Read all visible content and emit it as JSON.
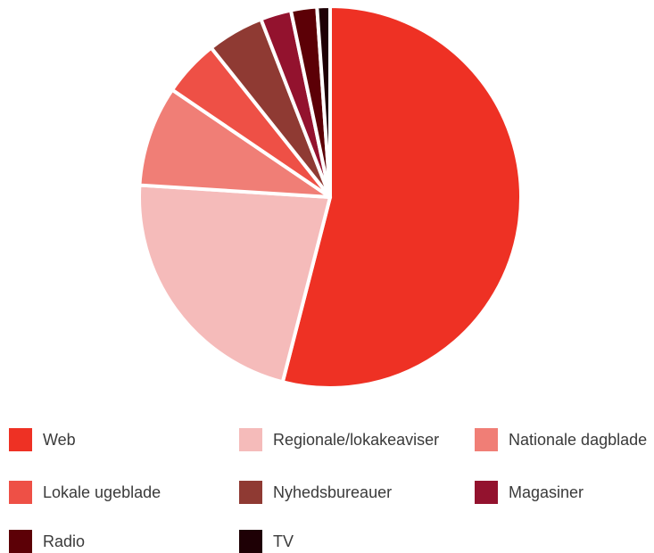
{
  "chart_data": {
    "type": "pie",
    "title": "",
    "start_angle_deg": 0,
    "direction": "clockwise",
    "legend_position": "bottom",
    "series": [
      {
        "name": "Web",
        "value": 54.0,
        "color": "#EE3124"
      },
      {
        "name": "Regionale/lokakeaviser",
        "value": 22.0,
        "color": "#F5BBBA"
      },
      {
        "name": "Nationale dagblade",
        "value": 8.5,
        "color": "#F07E76"
      },
      {
        "name": "Lokale ugeblade",
        "value": 4.8,
        "color": "#EE5046"
      },
      {
        "name": "Nyhedsbureauer",
        "value": 4.8,
        "color": "#8F3A33"
      },
      {
        "name": "Magasiner",
        "value": 2.6,
        "color": "#93122E"
      },
      {
        "name": "Radio",
        "value": 2.2,
        "color": "#5C0006"
      },
      {
        "name": "TV",
        "value": 1.1,
        "color": "#1E0005"
      }
    ]
  }
}
